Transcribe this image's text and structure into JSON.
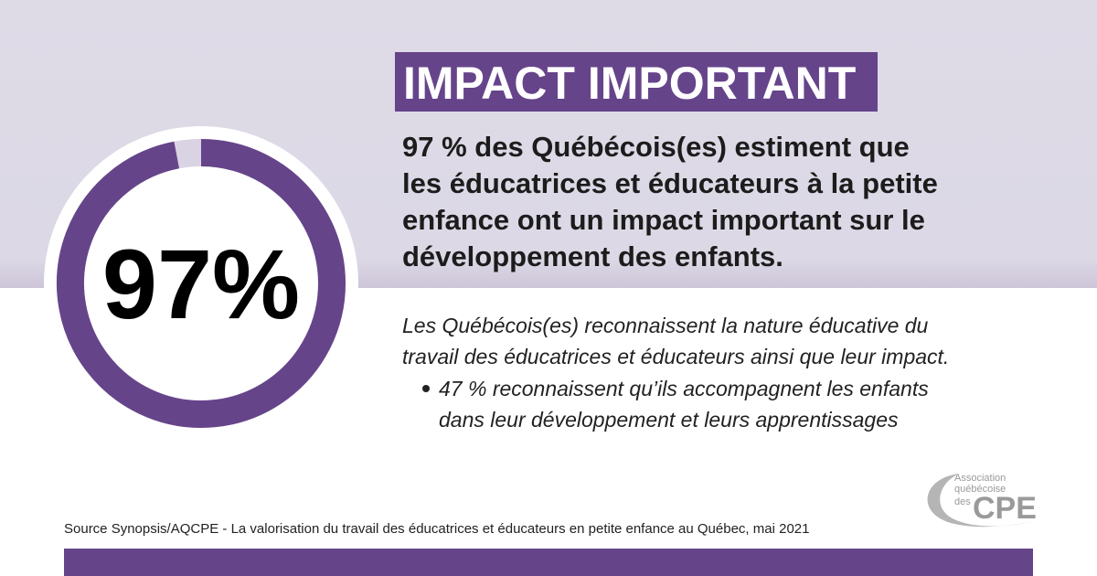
{
  "chart_data": {
    "type": "donut",
    "values": [
      97
    ],
    "value_labels": [
      "97%"
    ],
    "vlim": [
      0,
      100
    ],
    "color": "#66448a",
    "track_color": "#d9d3e3"
  },
  "heading": "IMPACT IMPORTANT",
  "lead": [
    "97 % des Québécois(es) estiment que",
    "les éducatrices et éducateurs à la petite",
    "enfance ont un impact important sur le",
    "développement des enfants."
  ],
  "body": [
    "Les Québécois(es) reconnaissent la nature éducative du",
    "travail des éducatrices et éducateurs ainsi que leur impact."
  ],
  "bullet": [
    "47 % reconnaissent qu’ils accompagnent les enfants",
    "dans leur développement et leurs apprentissages"
  ],
  "source": "Source Synopsis/AQCPE - La valorisation du travail des éducatrices et éducateurs en petite enfance au Québec, mai 2021",
  "logo": {
    "line1": "Association",
    "line2": "québécoise",
    "line3": "des",
    "acronym": "CPE"
  }
}
